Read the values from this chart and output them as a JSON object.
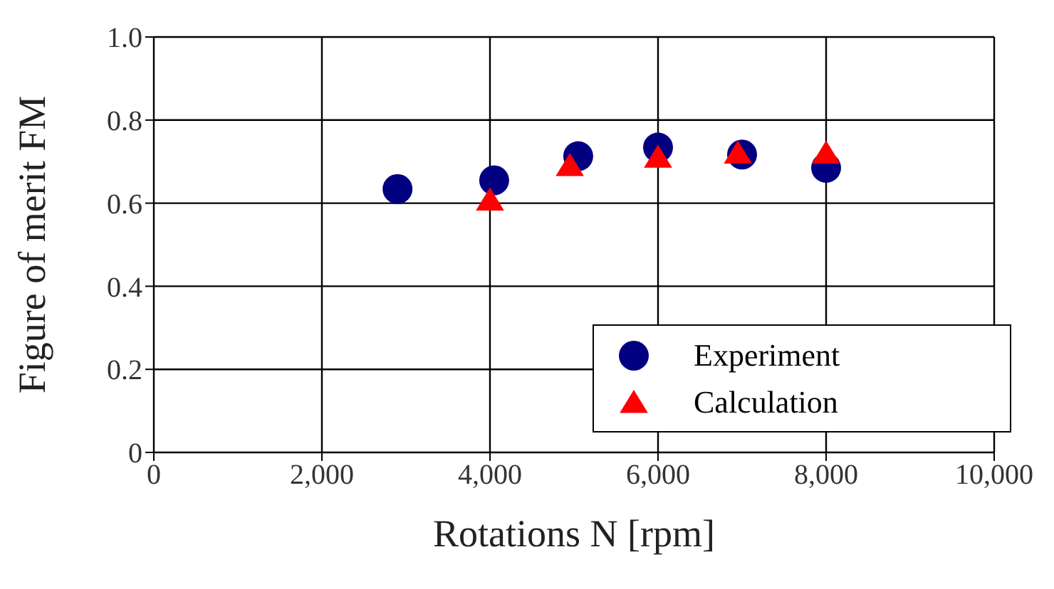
{
  "chart_data": {
    "type": "scatter",
    "xlabel": "Rotations N [rpm]",
    "ylabel": "Figure of merit FM",
    "xlim": [
      0,
      10000
    ],
    "xticks": [
      0,
      {
        "value": 2000,
        "label": "2,000"
      },
      {
        "value": 4000,
        "label": "4,000"
      },
      {
        "value": 6000,
        "label": "6,000"
      },
      {
        "value": 8000,
        "label": "8,000"
      },
      {
        "value": 10000,
        "label": "10,000"
      }
    ],
    "ylim": [
      0,
      1
    ],
    "yticks": [
      0,
      0.2,
      0.4,
      0.6,
      0.8,
      {
        "value": 1,
        "label": "1.0"
      }
    ],
    "grid": true,
    "legend": "bottom right",
    "series": [
      {
        "name": "Experiment",
        "color": "#000080",
        "marker": "circle",
        "x": [
          2900,
          4050,
          5050,
          6000,
          7000,
          8000
        ],
        "values": [
          0.634,
          0.655,
          0.713,
          0.734,
          0.717,
          0.685
        ]
      },
      {
        "name": "Calculation",
        "color": "#ff0000",
        "marker": "triangle",
        "x": [
          4000,
          4950,
          6000,
          6950,
          8000
        ],
        "values": [
          0.607,
          0.69,
          0.71,
          0.72,
          0.72
        ]
      }
    ]
  }
}
